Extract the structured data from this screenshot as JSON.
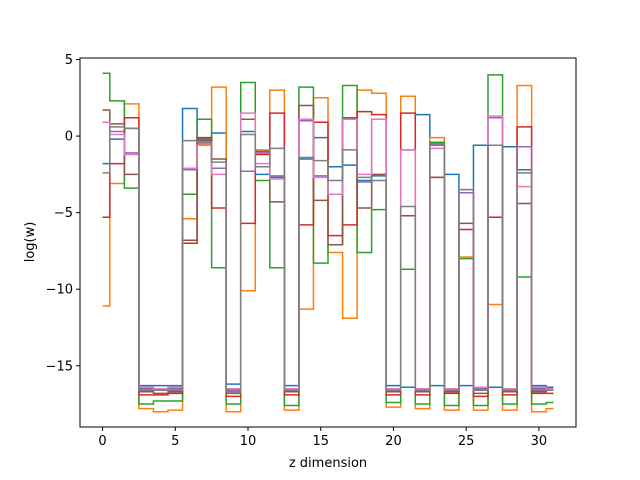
{
  "chart_data": {
    "type": "line",
    "drawstyle": "steps-mid",
    "title": "",
    "xlabel": "z dimension",
    "ylabel": "log(w)",
    "xlim": [
      -1.55,
      32.55
    ],
    "ylim": [
      -19.0,
      5.1
    ],
    "xticks": [
      0,
      5,
      10,
      15,
      20,
      25,
      30
    ],
    "yticks": [
      -15,
      -10,
      -5,
      0,
      5
    ],
    "grid": false,
    "legend": "none",
    "x": [
      0,
      1,
      2,
      3,
      4,
      5,
      6,
      7,
      8,
      9,
      10,
      11,
      12,
      13,
      14,
      15,
      16,
      17,
      18,
      19,
      20,
      21,
      22,
      23,
      24,
      25,
      26,
      27,
      28,
      29,
      30,
      31
    ],
    "series": [
      {
        "color": "#1f77b4",
        "values": [
          -1.8,
          -0.2,
          0.5,
          -16.3,
          -16.3,
          -16.3,
          1.8,
          -0.2,
          0.2,
          -16.2,
          0.3,
          -2.5,
          -2.7,
          -16.3,
          -1.5,
          -0.1,
          -2.0,
          -1.9,
          -2.9,
          -2.6,
          -16.3,
          -16.4,
          1.4,
          -16.3,
          -2.5,
          -16.3,
          -0.6,
          -16.4,
          -0.7,
          -2.2,
          -16.3,
          -16.4
        ]
      },
      {
        "color": "#ff7f0e",
        "values": [
          -11.1,
          -3.1,
          2.1,
          -17.8,
          -18.0,
          -17.9,
          -5.4,
          -0.5,
          3.2,
          -18.0,
          -10.1,
          -0.9,
          3.0,
          -17.9,
          -11.3,
          2.5,
          -7.6,
          -11.9,
          3.0,
          2.8,
          -17.7,
          2.6,
          -17.8,
          -0.1,
          -17.9,
          -7.9,
          -17.9,
          -11.0,
          -17.9,
          3.3,
          -18.0,
          -17.8
        ]
      },
      {
        "color": "#2ca02c",
        "values": [
          4.1,
          2.3,
          -3.4,
          -17.5,
          -17.3,
          -17.3,
          -3.8,
          1.1,
          -8.6,
          -17.5,
          3.5,
          -2.9,
          -8.6,
          -17.6,
          3.2,
          -8.3,
          -7.1,
          3.3,
          -7.6,
          -4.8,
          -17.4,
          -8.7,
          -17.5,
          -0.4,
          -17.6,
          -8.0,
          -17.6,
          4.0,
          -17.5,
          -9.2,
          -17.5,
          -17.4
        ]
      },
      {
        "color": "#d62728",
        "values": [
          -5.3,
          -1.8,
          1.2,
          -16.9,
          -16.9,
          -16.8,
          -7.0,
          -0.1,
          -4.7,
          -17.0,
          -5.7,
          -1.2,
          1.5,
          -16.9,
          -5.8,
          0.9,
          -6.5,
          -5.8,
          1.6,
          1.4,
          -16.9,
          1.5,
          -16.9,
          -2.7,
          -16.8,
          -6.1,
          -17.0,
          -5.3,
          -16.9,
          0.6,
          -16.8,
          -16.8
        ]
      },
      {
        "color": "#9467bd",
        "values": [
          0.9,
          0.3,
          -1.1,
          -16.5,
          -16.6,
          -16.5,
          -2.2,
          -0.6,
          -2.1,
          -16.6,
          -2.3,
          -1.1,
          -2.6,
          -16.6,
          1.0,
          -2.6,
          -3.8,
          1.1,
          -3.0,
          1.1,
          -16.5,
          -0.9,
          -16.6,
          -0.6,
          -16.5,
          -3.7,
          -16.5,
          1.2,
          -16.6,
          -0.7,
          -16.5,
          -16.6
        ]
      },
      {
        "color": "#8c564b",
        "values": [
          1.7,
          0.8,
          -2.5,
          -16.7,
          -16.8,
          -16.7,
          -6.8,
          -0.3,
          -1.5,
          -16.8,
          1.1,
          -1.0,
          -4.3,
          -16.7,
          2.0,
          -4.2,
          -7.1,
          1.2,
          -4.7,
          -2.5,
          -16.7,
          -5.2,
          -16.7,
          -2.7,
          -16.7,
          -5.7,
          -16.8,
          -0.6,
          -16.7,
          -4.4,
          -16.7,
          -16.6
        ]
      },
      {
        "color": "#e377c2",
        "values": [
          0.9,
          0.1,
          -1.2,
          -16.4,
          -16.5,
          -16.4,
          -2.1,
          -0.6,
          -2.5,
          -16.5,
          1.5,
          -1.8,
          -2.8,
          -16.5,
          1.1,
          -2.7,
          -3.8,
          1.1,
          -2.5,
          1.1,
          -16.5,
          -0.9,
          -16.5,
          -0.8,
          -16.5,
          -3.5,
          -16.4,
          1.3,
          -16.5,
          -3.3,
          -16.4,
          -16.5
        ]
      },
      {
        "color": "#7f7f7f",
        "values": [
          -2.4,
          0.6,
          0.5,
          -16.6,
          -16.6,
          -16.6,
          -0.3,
          -0.4,
          -1.7,
          -16.7,
          0.1,
          -2.0,
          -0.8,
          -16.6,
          -1.4,
          -1.6,
          -2.9,
          -0.9,
          -2.7,
          -2.9,
          -16.6,
          -4.6,
          -16.6,
          -0.5,
          -16.6,
          -3.5,
          -16.6,
          -0.6,
          -16.6,
          -2.4,
          -16.6,
          -16.6
        ]
      }
    ]
  }
}
